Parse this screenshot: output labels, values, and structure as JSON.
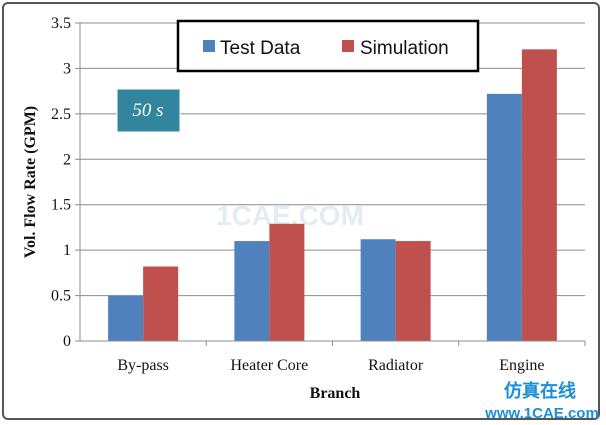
{
  "chart_data": {
    "type": "bar",
    "categories": [
      "By-pass",
      "Heater Core",
      "Radiator",
      "Engine"
    ],
    "series": [
      {
        "name": "Test Data",
        "color": "#4f81bd",
        "values": [
          0.5,
          1.1,
          1.12,
          2.72
        ]
      },
      {
        "name": "Simulation",
        "color": "#c0504d",
        "values": [
          0.82,
          1.29,
          1.1,
          3.21
        ]
      }
    ],
    "title": "",
    "xlabel": "Branch",
    "ylabel": "Vol. Flow Rate (GPM)",
    "ylim": [
      0,
      3.5
    ],
    "yticks": [
      "0",
      "0.5",
      "1",
      "1.5",
      "2",
      "2.5",
      "3",
      "3.5"
    ],
    "grid": true,
    "legend": "top",
    "annotation": {
      "text": "50 s",
      "background": "#31859c"
    }
  },
  "watermarks": {
    "center": "1CAE.COM",
    "bottom_right_cn": "仿真在线",
    "bottom_right_url": "www.1CAE.com"
  }
}
